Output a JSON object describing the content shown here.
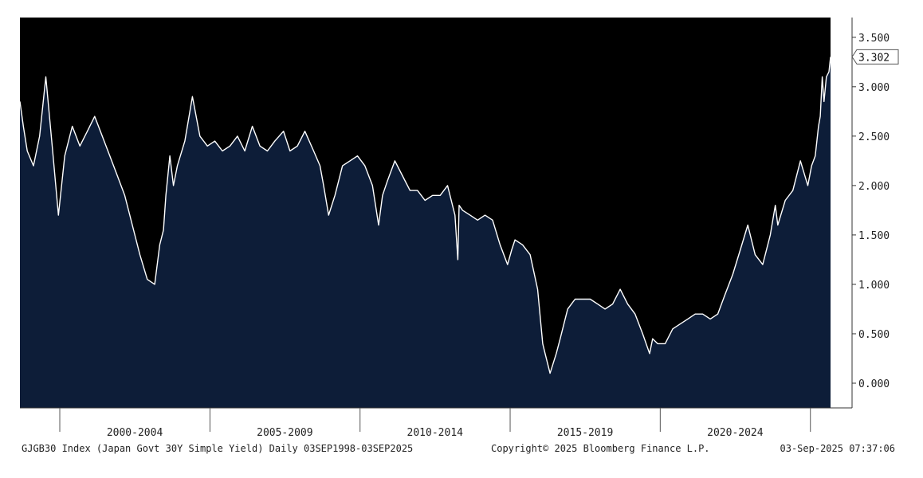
{
  "chart_data": {
    "type": "area",
    "title": "",
    "xlabel": "",
    "ylabel": "",
    "x_range": [
      "1998-09-03",
      "2025-09-03"
    ],
    "ylim": [
      -0.25,
      3.7
    ],
    "grid": false,
    "y_ticks": [
      {
        "value": 3.5,
        "label": "3.500"
      },
      {
        "value": 3.0,
        "label": "3.000"
      },
      {
        "value": 2.5,
        "label": "2.500"
      },
      {
        "value": 2.0,
        "label": "2.000"
      },
      {
        "value": 1.5,
        "label": "1.500"
      },
      {
        "value": 1.0,
        "label": "1.000"
      },
      {
        "value": 0.5,
        "label": "0.500"
      },
      {
        "value": 0.0,
        "label": "0.000"
      }
    ],
    "x_ticks": [
      "2000-01-01",
      "2005-01-01",
      "2010-01-01",
      "2015-01-01",
      "2020-01-01",
      "2025-01-01"
    ],
    "x_period_labels": [
      {
        "label": "2000-2004",
        "center": "2002-07-01"
      },
      {
        "label": "2005-2009",
        "center": "2007-07-01"
      },
      {
        "label": "2010-2014",
        "center": "2012-07-01"
      },
      {
        "label": "2015-2019",
        "center": "2017-07-01"
      },
      {
        "label": "2020-2024",
        "center": "2022-07-01"
      }
    ],
    "last_value": 3.302,
    "last_value_label": "3.302",
    "colors": {
      "background": "#000000",
      "area_fill": "#0d1d38",
      "line": "#ffffff"
    },
    "series": [
      {
        "x": [
          "1998-09-03",
          "1998-10-15",
          "1998-12-01",
          "1999-02-15",
          "1999-05-01",
          "1999-07-15",
          "1999-10-01",
          "1999-12-15",
          "2000-03-01",
          "2000-06-01",
          "2000-09-01",
          "2000-12-01",
          "2001-03-01",
          "2001-06-01",
          "2001-09-01",
          "2001-12-01",
          "2002-03-01",
          "2002-06-01",
          "2002-09-01",
          "2002-12-01",
          "2003-03-01",
          "2003-05-01",
          "2003-06-15",
          "2003-07-15",
          "2003-09-01",
          "2003-10-15",
          "2003-12-01",
          "2004-03-01",
          "2004-06-01",
          "2004-09-01",
          "2004-12-01",
          "2005-03-01",
          "2005-06-01",
          "2005-09-01",
          "2005-12-01",
          "2006-03-01",
          "2006-06-01",
          "2006-09-01",
          "2006-12-01",
          "2007-03-01",
          "2007-06-15",
          "2007-09-01",
          "2007-12-01",
          "2008-03-01",
          "2008-06-15",
          "2008-09-01",
          "2008-10-15",
          "2008-12-15",
          "2009-03-01",
          "2009-06-01",
          "2009-09-01",
          "2009-12-01",
          "2010-03-01",
          "2010-06-01",
          "2010-08-15",
          "2010-10-01",
          "2010-12-01",
          "2011-03-01",
          "2011-06-01",
          "2011-09-01",
          "2011-12-01",
          "2012-03-01",
          "2012-06-01",
          "2012-09-01",
          "2012-12-01",
          "2013-03-01",
          "2013-04-05",
          "2013-04-20",
          "2013-06-01",
          "2013-09-01",
          "2013-12-01",
          "2014-03-01",
          "2014-06-01",
          "2014-09-01",
          "2014-12-01",
          "2015-01-20",
          "2015-03-01",
          "2015-06-01",
          "2015-09-01",
          "2015-12-01",
          "2016-02-01",
          "2016-03-01",
          "2016-05-01",
          "2016-07-15",
          "2016-09-01",
          "2016-12-01",
          "2017-03-01",
          "2017-06-01",
          "2017-09-01",
          "2017-12-01",
          "2018-03-01",
          "2018-06-01",
          "2018-09-01",
          "2018-12-01",
          "2019-03-01",
          "2019-06-01",
          "2019-08-25",
          "2019-10-01",
          "2019-12-01",
          "2020-03-01",
          "2020-06-01",
          "2020-09-01",
          "2020-12-01",
          "2021-03-01",
          "2021-06-01",
          "2021-09-01",
          "2021-12-01",
          "2022-03-01",
          "2022-06-01",
          "2022-09-01",
          "2022-12-01",
          "2023-03-01",
          "2023-06-01",
          "2023-09-01",
          "2023-11-01",
          "2023-12-01",
          "2024-03-01",
          "2024-06-01",
          "2024-09-01",
          "2024-12-01",
          "2025-01-15",
          "2025-03-01",
          "2025-04-10",
          "2025-05-01",
          "2025-05-25",
          "2025-06-15",
          "2025-07-15",
          "2025-08-15",
          "2025-09-03"
        ],
        "values": [
          2.85,
          2.6,
          2.35,
          2.2,
          2.5,
          3.1,
          2.4,
          1.7,
          2.3,
          2.6,
          2.4,
          2.55,
          2.7,
          2.5,
          2.3,
          2.1,
          1.9,
          1.6,
          1.3,
          1.05,
          1.0,
          1.4,
          1.55,
          1.9,
          2.3,
          2.0,
          2.2,
          2.45,
          2.9,
          2.5,
          2.4,
          2.45,
          2.35,
          2.4,
          2.5,
          2.35,
          2.6,
          2.4,
          2.35,
          2.45,
          2.55,
          2.35,
          2.4,
          2.55,
          2.35,
          2.2,
          2.0,
          1.7,
          1.9,
          2.2,
          2.25,
          2.3,
          2.2,
          2.0,
          1.6,
          1.9,
          2.05,
          2.25,
          2.1,
          1.95,
          1.95,
          1.85,
          1.9,
          1.9,
          2.0,
          1.7,
          1.25,
          1.8,
          1.75,
          1.7,
          1.65,
          1.7,
          1.65,
          1.4,
          1.2,
          1.35,
          1.45,
          1.4,
          1.3,
          0.95,
          0.4,
          0.3,
          0.1,
          0.3,
          0.45,
          0.75,
          0.85,
          0.85,
          0.85,
          0.8,
          0.75,
          0.8,
          0.95,
          0.8,
          0.7,
          0.5,
          0.3,
          0.45,
          0.4,
          0.4,
          0.55,
          0.6,
          0.65,
          0.7,
          0.7,
          0.65,
          0.7,
          0.9,
          1.1,
          1.35,
          1.6,
          1.3,
          1.2,
          1.5,
          1.8,
          1.6,
          1.85,
          1.95,
          2.25,
          2.0,
          2.2,
          2.3,
          2.6,
          2.7,
          3.1,
          2.85,
          3.1,
          3.15,
          3.302
        ]
      }
    ]
  },
  "footer": {
    "left": "GJGB30 Index (Japan Govt 30Y Simple Yield)  Daily 03SEP1998-03SEP2025",
    "center": "Copyright© 2025 Bloomberg Finance L.P.",
    "right": "03-Sep-2025 07:37:06"
  }
}
